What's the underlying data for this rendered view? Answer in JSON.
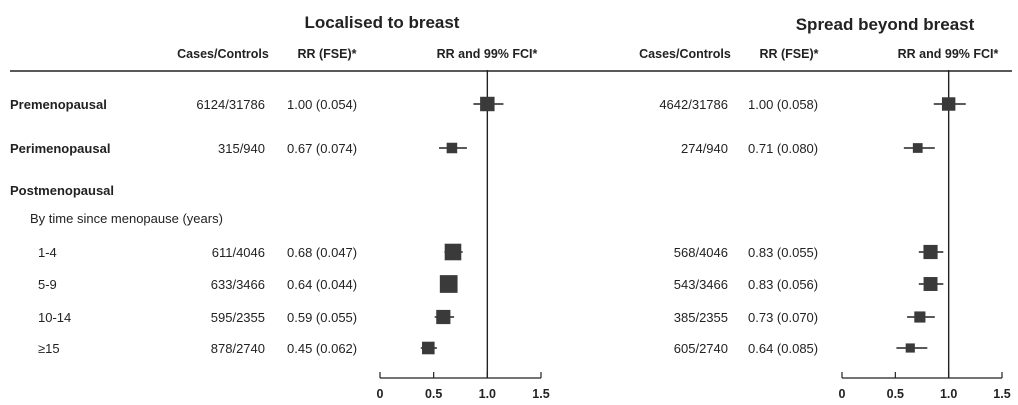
{
  "panels": [
    {
      "title": "Localised to breast",
      "columns": {
        "cases": "Cases/Controls",
        "rr": "RR (FSE)*",
        "ci": "RR and 99% FCI*"
      }
    },
    {
      "title": "Spread beyond breast",
      "columns": {
        "cases": "Cases/Controls",
        "rr": "RR (FSE)*",
        "ci": "RR and 99% FCI*"
      }
    }
  ],
  "rows": [
    {
      "label": "Premenopausal",
      "bold": true
    },
    {
      "label": "Perimenopausal",
      "bold": true
    },
    {
      "label": "Postmenopausal",
      "bold": true
    },
    {
      "label": "By time since menopause (years)",
      "bold": false
    },
    {
      "label": "1-4",
      "bold": false
    },
    {
      "label": "5-9",
      "bold": false
    },
    {
      "label": "10-14",
      "bold": false
    },
    {
      "label": "≥15",
      "bold": false
    }
  ],
  "chart_data": [
    {
      "type": "forest",
      "title": "Localised to breast",
      "xlim": [
        0,
        1.5
      ],
      "xticks": [
        0,
        0.5,
        1.0,
        1.5
      ],
      "xtick_labels": [
        "0",
        "0.5",
        "1.0",
        "1.5"
      ],
      "reference_line": 1.0,
      "series": [
        {
          "row": "Premenopausal",
          "cases": "6124/31786",
          "rr_text": "1.00 (0.054)",
          "rr": 1.0,
          "lo": 0.87,
          "hi": 1.15
        },
        {
          "row": "Perimenopausal",
          "cases": "315/940",
          "rr_text": "0.67 (0.074)",
          "rr": 0.67,
          "lo": 0.55,
          "hi": 0.81
        },
        {
          "row": "1-4",
          "cases": "611/4046",
          "rr_text": "0.68 (0.047)",
          "rr": 0.68,
          "lo": 0.6,
          "hi": 0.77
        },
        {
          "row": "5-9",
          "cases": "633/3466",
          "rr_text": "0.64 (0.044)",
          "rr": 0.64,
          "lo": 0.57,
          "hi": 0.72
        },
        {
          "row": "10-14",
          "cases": "595/2355",
          "rr_text": "0.59 (0.055)",
          "rr": 0.59,
          "lo": 0.51,
          "hi": 0.69
        },
        {
          "row": "≥15",
          "cases": "878/2740",
          "rr_text": "0.45 (0.062)",
          "rr": 0.45,
          "lo": 0.38,
          "hi": 0.53
        }
      ]
    },
    {
      "type": "forest",
      "title": "Spread beyond breast",
      "xlim": [
        0,
        1.5
      ],
      "xticks": [
        0,
        0.5,
        1.0,
        1.5
      ],
      "xtick_labels": [
        "0",
        "0.5",
        "1.0",
        "1.5"
      ],
      "reference_line": 1.0,
      "series": [
        {
          "row": "Premenopausal",
          "cases": "4642/31786",
          "rr_text": "1.00 (0.058)",
          "rr": 1.0,
          "lo": 0.86,
          "hi": 1.16
        },
        {
          "row": "Perimenopausal",
          "cases": "274/940",
          "rr_text": "0.71 (0.080)",
          "rr": 0.71,
          "lo": 0.58,
          "hi": 0.87
        },
        {
          "row": "1-4",
          "cases": "568/4046",
          "rr_text": "0.83 (0.055)",
          "rr": 0.83,
          "lo": 0.72,
          "hi": 0.95
        },
        {
          "row": "5-9",
          "cases": "543/3466",
          "rr_text": "0.83 (0.056)",
          "rr": 0.83,
          "lo": 0.72,
          "hi": 0.95
        },
        {
          "row": "10-14",
          "cases": "385/2355",
          "rr_text": "0.73 (0.070)",
          "rr": 0.73,
          "lo": 0.61,
          "hi": 0.87
        },
        {
          "row": "≥15",
          "cases": "605/2740",
          "rr_text": "0.64 (0.085)",
          "rr": 0.64,
          "lo": 0.51,
          "hi": 0.8
        }
      ]
    }
  ],
  "colors": {
    "ink": "#222222",
    "marker": "#3a3a3a"
  }
}
